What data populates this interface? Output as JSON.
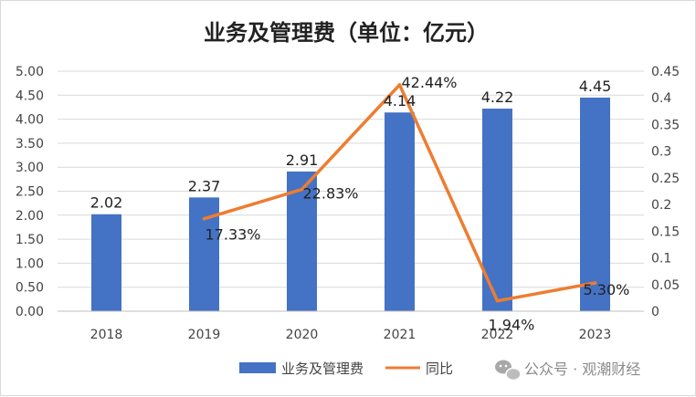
{
  "chart_data": {
    "type": "bar",
    "title": "业务及管理费（单位：亿元）",
    "categories": [
      "2018",
      "2019",
      "2020",
      "2021",
      "2022",
      "2023"
    ],
    "series": [
      {
        "name": "业务及管理费",
        "kind": "bar",
        "axis": "left",
        "color": "#4472C4",
        "values": [
          2.02,
          2.37,
          2.91,
          4.14,
          4.22,
          4.45
        ],
        "labels": [
          "2.02",
          "2.37",
          "2.91",
          "4.14",
          "4.22",
          "4.45"
        ]
      },
      {
        "name": "同比",
        "kind": "line",
        "axis": "right",
        "color": "#ED7D31",
        "values": [
          null,
          0.1733,
          0.2283,
          0.4244,
          0.0194,
          0.053
        ],
        "labels": [
          "",
          "17.33%",
          "22.83%",
          "42.44%",
          "1.94%",
          "5.30%"
        ]
      }
    ],
    "y_left": {
      "range": [
        0,
        5
      ],
      "ticks": [
        "0.00",
        "0.50",
        "1.00",
        "1.50",
        "2.00",
        "2.50",
        "3.00",
        "3.50",
        "4.00",
        "4.50",
        "5.00"
      ]
    },
    "y_right": {
      "range": [
        0,
        0.45
      ],
      "ticks": [
        "0",
        "0.05",
        "0.1",
        "0.15",
        "0.2",
        "0.25",
        "0.3",
        "0.35",
        "0.4",
        "0.45"
      ]
    },
    "grid": true,
    "legend": "bottom-center"
  },
  "watermark": "公众号 · 观潮财经"
}
